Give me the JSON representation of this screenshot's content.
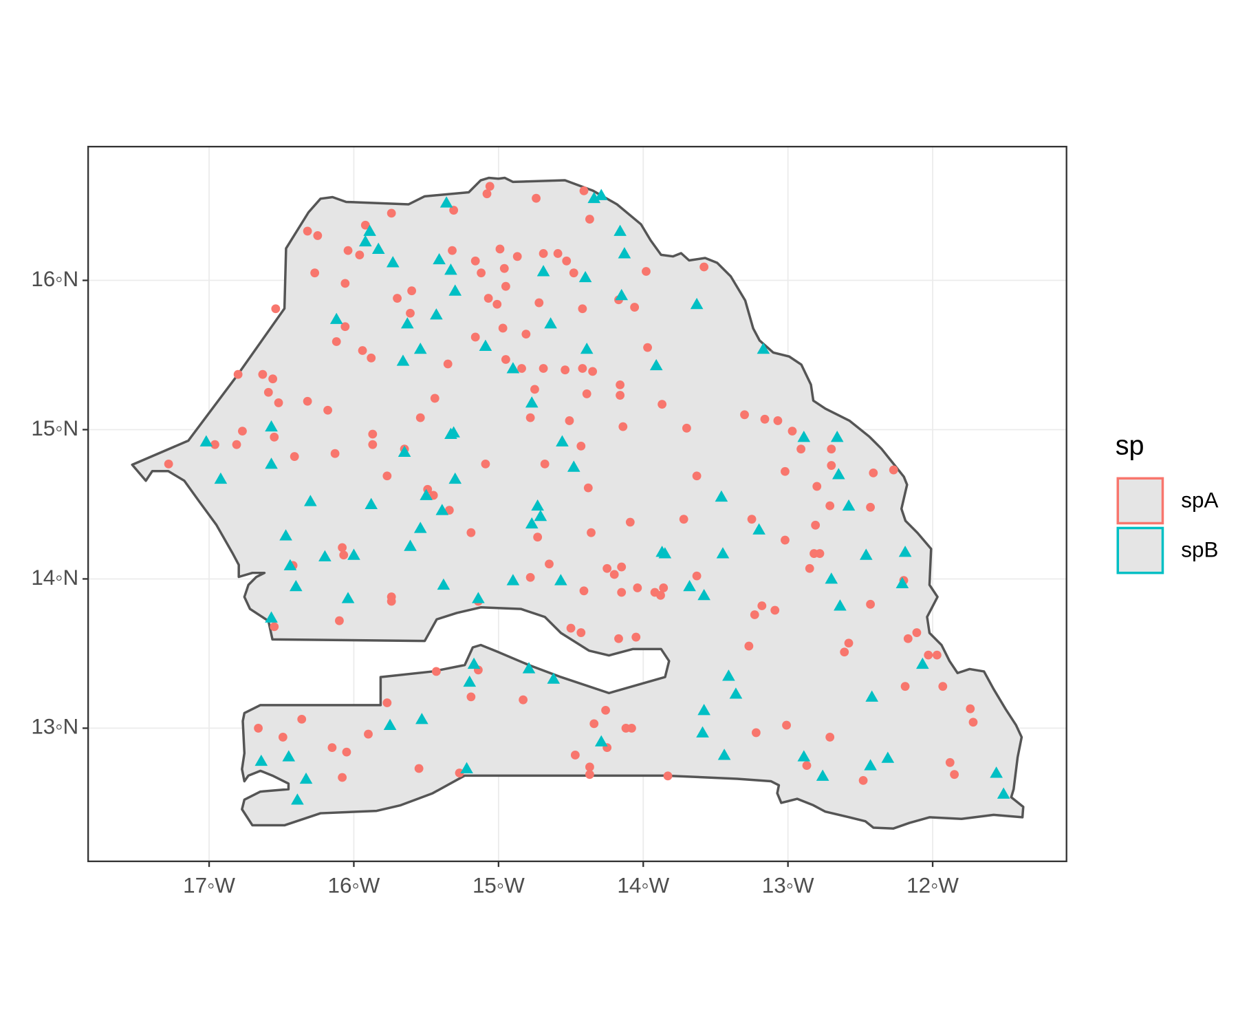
{
  "chart_data": {
    "type": "scatter",
    "xlim": [
      -17.836,
      -11.075
    ],
    "ylim": [
      12.108,
      16.896
    ],
    "xticks": [
      {
        "value": -17,
        "label": "17◦W"
      },
      {
        "value": -16,
        "label": "16◦W"
      },
      {
        "value": -15,
        "label": "15◦W"
      },
      {
        "value": -14,
        "label": "14◦W"
      },
      {
        "value": -13,
        "label": "13◦W"
      },
      {
        "value": -12,
        "label": "12◦W"
      }
    ],
    "yticks": [
      {
        "value": 13,
        "label": "13◦N"
      },
      {
        "value": 14,
        "label": "14◦N"
      },
      {
        "value": 15,
        "label": "15◦N"
      },
      {
        "value": 16,
        "label": "16◦N"
      }
    ],
    "grid": true,
    "legend_title": "sp",
    "legend_position": "right",
    "series": [
      {
        "name": "spA",
        "color": "#F8766D",
        "shape": "circle",
        "x": [
          -17.28,
          -16.96,
          -16.81,
          -16.77,
          -16.8,
          -16.63,
          -16.56,
          -16.59,
          -16.52,
          -16.54,
          -16.32,
          -16.25,
          -16.27,
          -16.06,
          -16.04,
          -15.96,
          -15.92,
          -15.74,
          -16.06,
          -16.12,
          -15.94,
          -15.88,
          -16.32,
          -16.18,
          -16.55,
          -16.41,
          -16.13,
          -15.87,
          -15.87,
          -15.77,
          -15.65,
          -15.54,
          -15.44,
          -15.35,
          -15.7,
          -15.6,
          -15.61,
          -15.31,
          -15.32,
          -15.16,
          -15.12,
          -15.07,
          -15.01,
          -15.16,
          -14.97,
          -14.95,
          -14.95,
          -14.96,
          -14.99,
          -14.87,
          -14.69,
          -14.59,
          -14.53,
          -14.48,
          -14.72,
          -14.81,
          -14.84,
          -14.69,
          -14.75,
          -14.78,
          -14.51,
          -14.43,
          -14.54,
          -14.42,
          -14.35,
          -14.39,
          -14.42,
          -14.37,
          -14.41,
          -14.74,
          -15.06,
          -15.08,
          -14.17,
          -14.06,
          -13.98,
          -13.97,
          -14.16,
          -14.16,
          -14.14,
          -13.87,
          -13.58,
          -13.7,
          -13.63,
          -13.72,
          -14.09,
          -14.38,
          -14.36,
          -14.68,
          -15.09,
          -15.49,
          -15.45,
          -15.34,
          -15.19,
          -14.73,
          -14.65,
          -14.78,
          -14.25,
          -14.2,
          -14.15,
          -14.41,
          -14.15,
          -14.04,
          -13.92,
          -13.88,
          -13.86,
          -13.63,
          -14.5,
          -14.43,
          -14.17,
          -14.05,
          -16.08,
          -16.07,
          -16.42,
          -15.74,
          -15.74,
          -16.55,
          -16.1,
          -15.14,
          -15.43,
          -15.14,
          -15.19,
          -14.83,
          -15.77,
          -15.9,
          -16.36,
          -16.66,
          -16.49,
          -16.15,
          -16.05,
          -16.08,
          -15.55,
          -15.27,
          -14.26,
          -14.34,
          -14.12,
          -14.08,
          -14.25,
          -14.47,
          -14.37,
          -14.37,
          -13.83,
          -13.22,
          -13.27,
          -13.23,
          -13.18,
          -13.09,
          -13.25,
          -13.02,
          -13.01,
          -12.87,
          -12.71,
          -13.3,
          -13.16,
          -13.07,
          -12.97,
          -12.91,
          -13.02,
          -12.7,
          -12.7,
          -12.8,
          -12.71,
          -12.81,
          -12.82,
          -12.78,
          -12.85,
          -12.41,
          -12.27,
          -12.43,
          -12.43,
          -12.58,
          -12.61,
          -12.2,
          -12.11,
          -12.17,
          -12.03,
          -11.97,
          -12.19,
          -11.93,
          -11.74,
          -11.72,
          -11.88,
          -11.85,
          -12.48
        ],
        "values": [
          14.77,
          14.9,
          14.9,
          14.99,
          15.37,
          15.37,
          15.34,
          15.25,
          15.18,
          15.81,
          16.33,
          16.3,
          16.05,
          15.98,
          16.2,
          16.17,
          16.37,
          16.45,
          15.69,
          15.59,
          15.53,
          15.48,
          15.19,
          15.13,
          14.95,
          14.82,
          14.84,
          14.97,
          14.9,
          14.69,
          14.87,
          15.08,
          15.21,
          15.44,
          15.88,
          15.93,
          15.78,
          16.47,
          16.2,
          16.13,
          16.05,
          15.88,
          15.84,
          15.62,
          15.68,
          15.47,
          15.96,
          16.08,
          16.21,
          16.16,
          16.18,
          16.18,
          16.13,
          16.05,
          15.85,
          15.64,
          15.41,
          15.41,
          15.27,
          15.08,
          15.06,
          14.89,
          15.4,
          15.41,
          15.39,
          15.24,
          15.81,
          16.41,
          16.6,
          16.55,
          16.63,
          16.58,
          15.87,
          15.82,
          16.06,
          15.55,
          15.3,
          15.23,
          15.02,
          15.17,
          16.09,
          15.01,
          14.69,
          14.4,
          14.38,
          14.61,
          14.31,
          14.77,
          14.77,
          14.6,
          14.56,
          14.46,
          14.31,
          14.28,
          14.1,
          14.01,
          14.07,
          14.03,
          14.08,
          13.92,
          13.91,
          13.94,
          13.91,
          13.89,
          13.94,
          14.02,
          13.67,
          13.64,
          13.6,
          13.61,
          14.21,
          14.16,
          14.09,
          13.88,
          13.85,
          13.68,
          13.72,
          13.85,
          13.38,
          13.39,
          13.21,
          13.19,
          13.17,
          12.96,
          13.06,
          13.0,
          12.94,
          12.87,
          12.84,
          12.67,
          12.73,
          12.7,
          13.12,
          13.03,
          13.0,
          13.0,
          12.87,
          12.82,
          12.74,
          12.69,
          12.68,
          12.97,
          13.55,
          13.76,
          13.82,
          13.79,
          14.4,
          14.26,
          13.02,
          12.75,
          12.94,
          15.1,
          15.07,
          15.06,
          14.99,
          14.87,
          14.72,
          14.87,
          14.76,
          14.62,
          14.49,
          14.36,
          14.17,
          14.17,
          14.07,
          14.71,
          14.73,
          14.48,
          13.83,
          13.57,
          13.51,
          13.99,
          13.64,
          13.6,
          13.49,
          13.49,
          13.28,
          13.28,
          13.13,
          13.04,
          12.77,
          12.69,
          12.65
        ]
      },
      {
        "name": "spB",
        "color": "#00BFC4",
        "shape": "triangle",
        "x": [
          -17.02,
          -16.92,
          -16.57,
          -16.57,
          -16.3,
          -16.47,
          -16.44,
          -16.4,
          -16.2,
          -16.0,
          -16.04,
          -16.57,
          -16.12,
          -15.92,
          -15.89,
          -15.83,
          -15.73,
          -15.36,
          -15.41,
          -15.33,
          -15.3,
          -15.43,
          -15.63,
          -15.54,
          -15.66,
          -15.09,
          -15.31,
          -15.33,
          -15.65,
          -15.3,
          -15.5,
          -15.39,
          -15.88,
          -15.54,
          -15.61,
          -15.38,
          -15.14,
          -14.9,
          -14.77,
          -14.69,
          -14.64,
          -14.4,
          -14.39,
          -14.56,
          -14.48,
          -14.73,
          -14.71,
          -14.77,
          -14.9,
          -14.57,
          -14.34,
          -14.29,
          -14.16,
          -14.13,
          -14.15,
          -13.91,
          -13.63,
          -13.17,
          -13.87,
          -13.85,
          -13.46,
          -13.45,
          -13.68,
          -13.58,
          -13.2,
          -12.89,
          -12.66,
          -12.65,
          -12.58,
          -12.7,
          -12.64,
          -12.46,
          -12.19,
          -12.21,
          -12.07,
          -12.42,
          -12.43,
          -12.31,
          -11.56,
          -11.51,
          -12.89,
          -12.76,
          -13.44,
          -13.36,
          -13.41,
          -13.58,
          -13.59,
          -14.29,
          -14.62,
          -14.79,
          -15.17,
          -15.2,
          -15.22,
          -15.53,
          -15.75,
          -16.33,
          -16.39,
          -16.45,
          -16.64
        ],
        "values": [
          14.92,
          14.67,
          15.02,
          14.77,
          14.52,
          14.29,
          14.09,
          13.95,
          14.15,
          14.16,
          13.87,
          13.74,
          15.74,
          16.26,
          16.33,
          16.21,
          16.12,
          16.52,
          16.14,
          16.07,
          15.93,
          15.77,
          15.71,
          15.54,
          15.46,
          15.56,
          14.98,
          14.97,
          14.85,
          14.67,
          14.56,
          14.46,
          14.5,
          14.34,
          14.22,
          13.96,
          13.87,
          15.41,
          15.18,
          16.06,
          15.71,
          16.02,
          15.54,
          14.92,
          14.75,
          14.49,
          14.42,
          14.37,
          13.99,
          13.99,
          16.55,
          16.57,
          16.33,
          16.18,
          15.9,
          15.43,
          15.84,
          15.54,
          14.18,
          14.17,
          14.55,
          14.17,
          13.95,
          13.89,
          14.33,
          14.95,
          14.95,
          14.7,
          14.49,
          14.0,
          13.82,
          14.16,
          14.18,
          13.97,
          13.43,
          13.21,
          12.75,
          12.8,
          12.7,
          12.56,
          12.81,
          12.68,
          12.82,
          13.23,
          13.35,
          13.12,
          12.97,
          12.91,
          13.33,
          13.4,
          13.43,
          13.31,
          12.73,
          13.06,
          13.02,
          12.66,
          12.52,
          12.81,
          12.78
        ]
      }
    ]
  }
}
